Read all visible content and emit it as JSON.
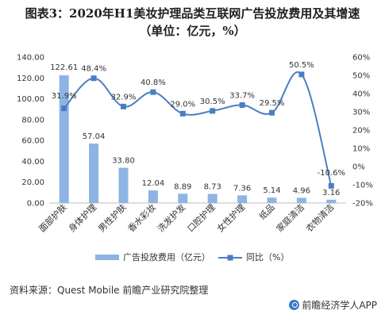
{
  "header": {
    "title_line1": "图表3：2020年H1美妆护理品类互联网广告投放费用及其增速",
    "title_line2": "（单位：亿元，%）"
  },
  "source": "资料来源：Quest Mobile 前瞻产业研究院整理",
  "brand": "前瞻经济学人APP",
  "chart_data": {
    "type": "bar",
    "categories": [
      "面部护肤",
      "身体护理",
      "男性护肤",
      "香水彩妆",
      "洗发护发",
      "口腔护理",
      "女性护理",
      "纸品",
      "家庭清洁",
      "衣物清洁"
    ],
    "series": [
      {
        "name": "广告投放费用（亿元）",
        "type": "bar",
        "axis": "left",
        "color": "#8db4e2",
        "values": [
          122.61,
          57.04,
          33.8,
          12.04,
          8.89,
          8.73,
          7.36,
          5.14,
          4.96,
          3.16
        ],
        "labels": [
          "122.61",
          "57.04",
          "33.80",
          "12.04",
          "8.89",
          "8.73",
          "7.36",
          "5.14",
          "4.96",
          "3.16"
        ]
      },
      {
        "name": "同比（%）",
        "type": "line",
        "axis": "right",
        "color": "#4a7ec2",
        "values": [
          31.9,
          48.4,
          32.9,
          40.8,
          29.0,
          30.5,
          33.7,
          29.5,
          50.5,
          -10.6
        ],
        "labels": [
          "31.9%",
          "48.4%",
          "32.9%",
          "40.8%",
          "29.0%",
          "30.5%",
          "33.7%",
          "29.5%",
          "50.5%",
          "-10.6%"
        ]
      }
    ],
    "ylim_left": [
      0,
      140
    ],
    "yticks_left": [
      "0.00",
      "20.00",
      "40.00",
      "60.00",
      "80.00",
      "100.00",
      "120.00",
      "140.00"
    ],
    "ylim_right": [
      -20,
      60
    ],
    "yticks_right": [
      "-20%",
      "-10%",
      "0%",
      "10%",
      "20%",
      "30%",
      "40%",
      "50%",
      "60%"
    ],
    "grid": false,
    "legend_position": "bottom"
  }
}
